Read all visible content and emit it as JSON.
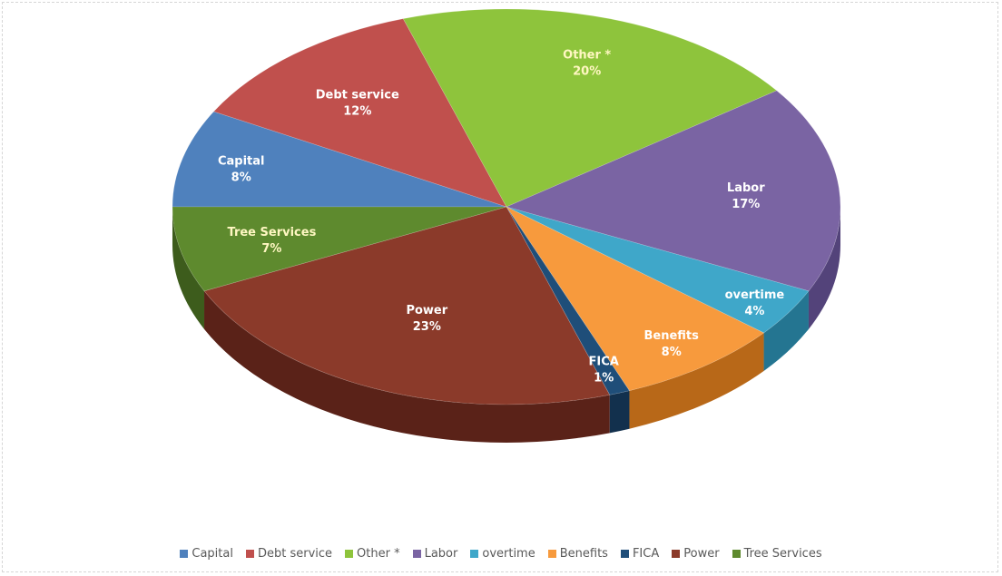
{
  "chart_data": {
    "type": "pie",
    "title": "",
    "legend_position": "bottom",
    "slices": [
      {
        "label": "Capital",
        "value": 8,
        "display": "8%",
        "color": "#4f81bd",
        "shade": "#2f5a8c"
      },
      {
        "label": "Debt service",
        "value": 12,
        "display": "12%",
        "color": "#c0504d",
        "shade": "#8c3532"
      },
      {
        "label": "Other *",
        "value": 20,
        "display": "20%",
        "color": "#8ec43c",
        "shade": "#5f8a22"
      },
      {
        "label": "Labor",
        "value": 17,
        "display": "17%",
        "color": "#7a64a3",
        "shade": "#53437a"
      },
      {
        "label": "overtime",
        "value": 4,
        "display": "4%",
        "color": "#3fa7c9",
        "shade": "#247591"
      },
      {
        "label": "Benefits",
        "value": 8,
        "display": "8%",
        "color": "#f79a3d",
        "shade": "#b86818"
      },
      {
        "label": "FICA",
        "value": 1,
        "display": "1%",
        "color": "#1f4e79",
        "shade": "#12304d"
      },
      {
        "label": "Power",
        "value": 23,
        "display": "23%",
        "color": "#8b3a2a",
        "shade": "#5a2218"
      },
      {
        "label": "Tree Services",
        "value": 7,
        "display": "7%",
        "color": "#5e8a2e",
        "shade": "#3d5c1c"
      }
    ]
  }
}
